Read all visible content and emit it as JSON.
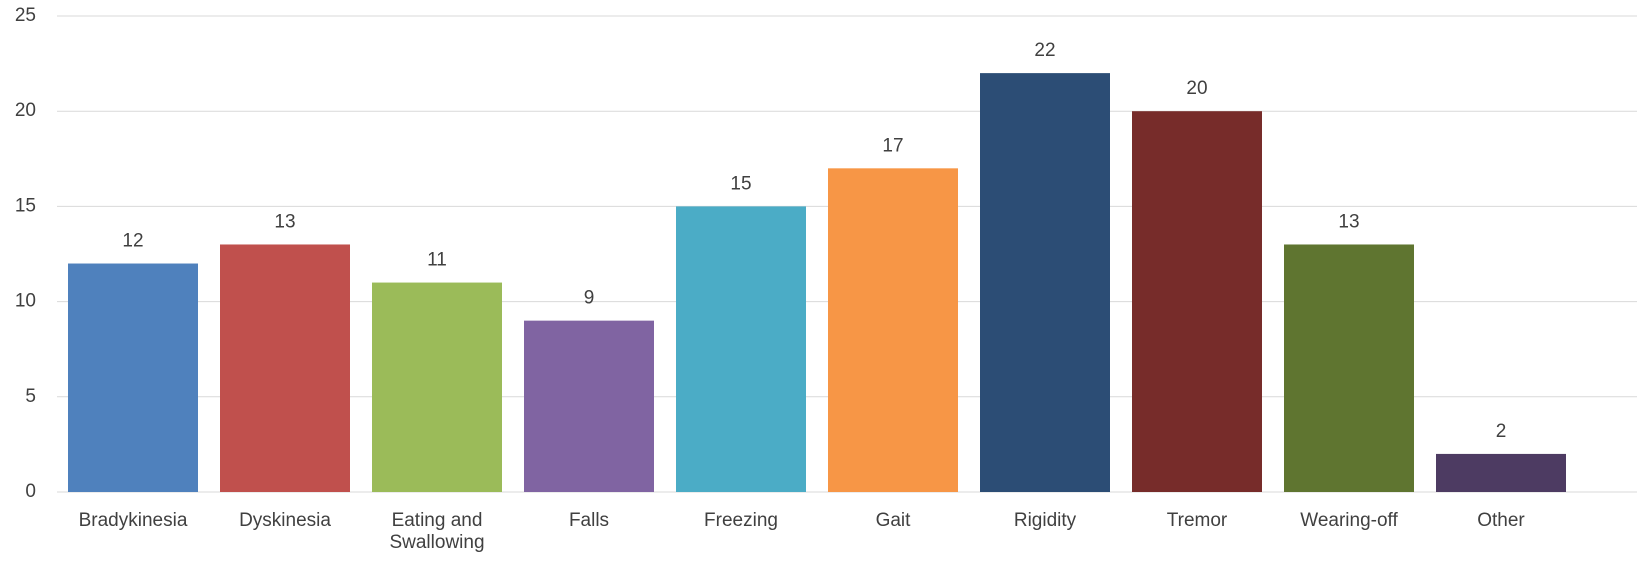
{
  "chart_data": {
    "type": "bar",
    "categories": [
      "Bradykinesia",
      "Dyskinesia",
      "Eating and Swallowing",
      "Falls",
      "Freezing",
      "Gait",
      "Rigidity",
      "Tremor",
      "Wearing-off",
      "Other"
    ],
    "values": [
      12,
      13,
      11,
      9,
      15,
      17,
      22,
      20,
      13,
      2
    ],
    "colors": [
      "#4f81bd",
      "#c0504d",
      "#9bbb59",
      "#8064a2",
      "#4bacc6",
      "#f79646",
      "#2c4d75",
      "#772c2a",
      "#5f7530",
      "#4d3b62"
    ],
    "ylim": [
      0,
      25
    ],
    "yticks": [
      0,
      5,
      10,
      15,
      20,
      25
    ],
    "grid": true,
    "data_labels": true
  }
}
